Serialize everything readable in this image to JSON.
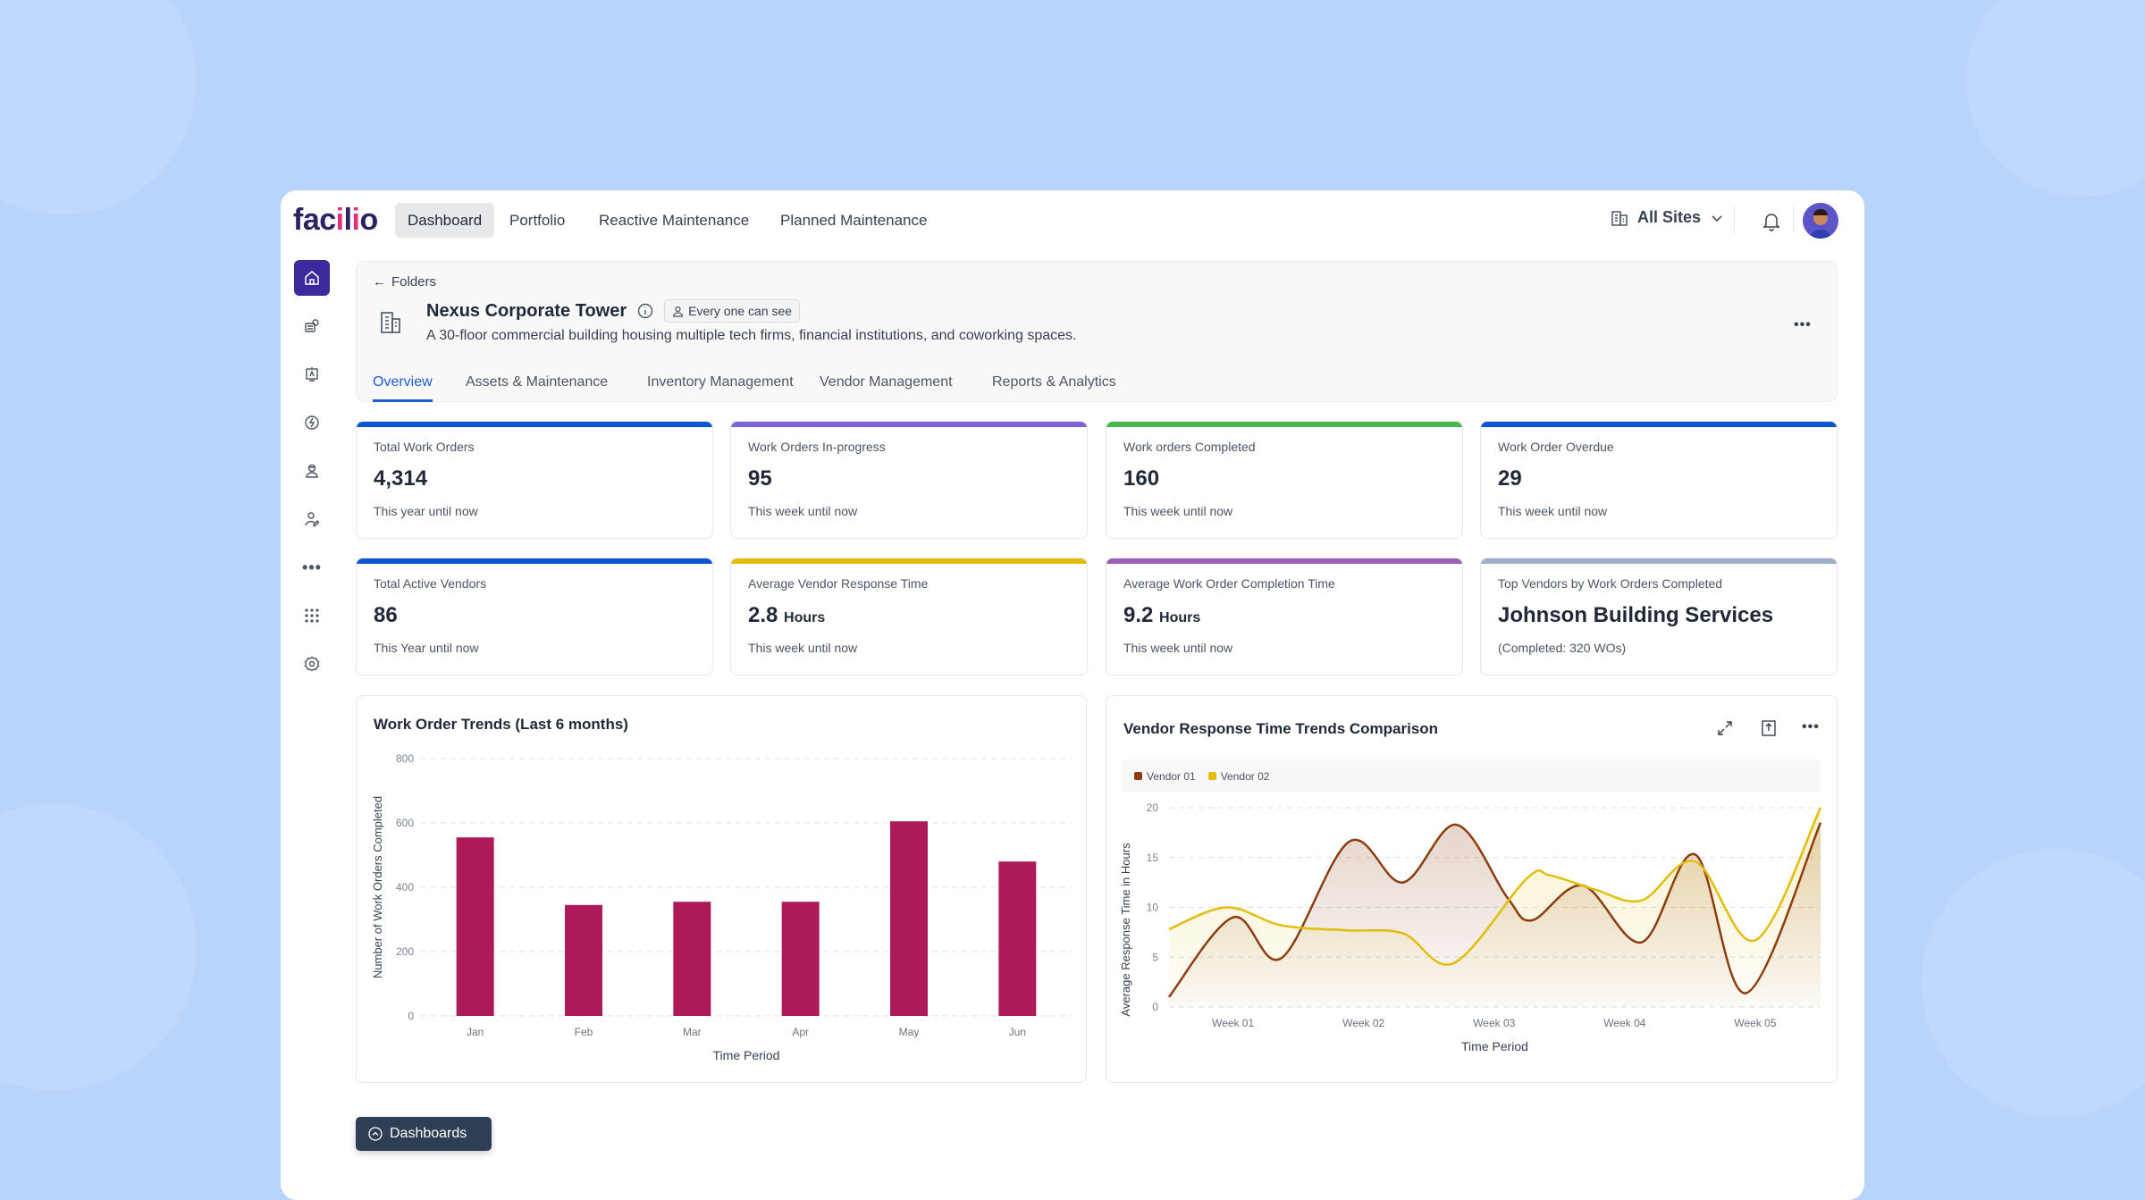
{
  "nav": {
    "logo": "facilio",
    "tabs": [
      "Dashboard",
      "Portfolio",
      "Reactive Maintenance",
      "Planned Maintenance"
    ],
    "active_tab": "Dashboard",
    "site_selector": "All Sites"
  },
  "sidebar": {
    "items": [
      "home-icon",
      "tools-icon",
      "kiosk-icon",
      "energy-icon",
      "technician-icon",
      "vendor-icon",
      "more-icon",
      "apps-grid-icon",
      "settings-icon"
    ],
    "active": "home-icon",
    "accent": "#3b2a9b"
  },
  "header": {
    "back_label": "Folders",
    "title": "Nexus Corporate Tower",
    "visibility": "Every one can see",
    "description": "A 30-floor commercial building housing multiple tech firms, financial institutions, and coworking spaces.",
    "tabs": [
      "Overview",
      "Assets & Maintenance",
      "Inventory Management",
      "Vendor Management",
      "Reports & Analytics"
    ],
    "active_tab": "Overview"
  },
  "cards": [
    {
      "label": "Total Work Orders",
      "value": "4,314",
      "unit": "",
      "sub": "This year until now",
      "color": "#0b57d0"
    },
    {
      "label": "Work Orders In-progress",
      "value": "95",
      "unit": "",
      "sub": "This week until now",
      "color": "#7c62d9"
    },
    {
      "label": "Work orders Completed",
      "value": "160",
      "unit": "",
      "sub": "This week until now",
      "color": "#4cb84c"
    },
    {
      "label": "Work Order Overdue",
      "value": "29",
      "unit": "",
      "sub": "This week until now",
      "color": "#0b57d0"
    },
    {
      "label": "Total Active Vendors",
      "value": "86",
      "unit": "",
      "sub": "This Year until now",
      "color": "#0b57d0"
    },
    {
      "label": "Average Vendor Response Time",
      "value": "2.8",
      "unit": "Hours",
      "sub": "This week until now",
      "color": "#e1bc0c"
    },
    {
      "label": "Average Work Order Completion Time",
      "value": "9.2",
      "unit": "Hours",
      "sub": "This week until now",
      "color": "#9b5fb8"
    },
    {
      "label": "Top Vendors by Work Orders Completed",
      "value": "Johnson Building Services",
      "unit": "",
      "sub": "(Completed: 320 WOs)",
      "color": "#9fb0c8"
    }
  ],
  "chart_data": [
    {
      "type": "bar",
      "title": "Work Order Trends (Last 6 months)",
      "xlabel": "Time Period",
      "ylabel": "Number of Work Orders Completed",
      "categories": [
        "Jan",
        "Feb",
        "Mar",
        "Apr",
        "May",
        "Jun"
      ],
      "values": [
        555,
        345,
        355,
        355,
        605,
        480
      ],
      "ylim": [
        0,
        800
      ],
      "yticks": [
        0,
        200,
        400,
        600,
        800
      ],
      "grid": true,
      "color": "#ad1a58"
    },
    {
      "type": "area",
      "title": "Vendor Response Time Trends Comparison",
      "xlabel": "Time Period",
      "ylabel": "Average Response Time in Hours",
      "xticks": [
        "Week 01",
        "Week 02",
        "Week 03",
        "Week 04",
        "Week 05"
      ],
      "ylim": [
        0,
        20
      ],
      "yticks": [
        0,
        5,
        10,
        15,
        20
      ],
      "grid": true,
      "legend": "top-left",
      "series": [
        {
          "name": "Vendor 01",
          "color": "#8b3d0e",
          "x": [
            0.51,
            1.0,
            1.37,
            1.89,
            2.3,
            2.71,
            3.1,
            3.29,
            3.68,
            4.13,
            4.54,
            4.93,
            5.5
          ],
          "y": [
            1,
            9,
            4.9,
            16.6,
            12.5,
            18.3,
            11,
            8.7,
            12.2,
            6.5,
            15.3,
            1.4,
            18.5
          ]
        },
        {
          "name": "Vendor 02",
          "color": "#e2bd0b",
          "x": [
            0.51,
            0.95,
            1.37,
            1.87,
            2.3,
            2.69,
            3.25,
            3.43,
            3.77,
            4.13,
            4.54,
            5.0,
            5.5
          ],
          "y": [
            7.8,
            10,
            8.2,
            7.7,
            7.4,
            4.4,
            12.9,
            13.2,
            11.8,
            10.7,
            14.6,
            6.7,
            20
          ]
        }
      ]
    }
  ],
  "footer": {
    "dashboards_button": "Dashboards"
  }
}
